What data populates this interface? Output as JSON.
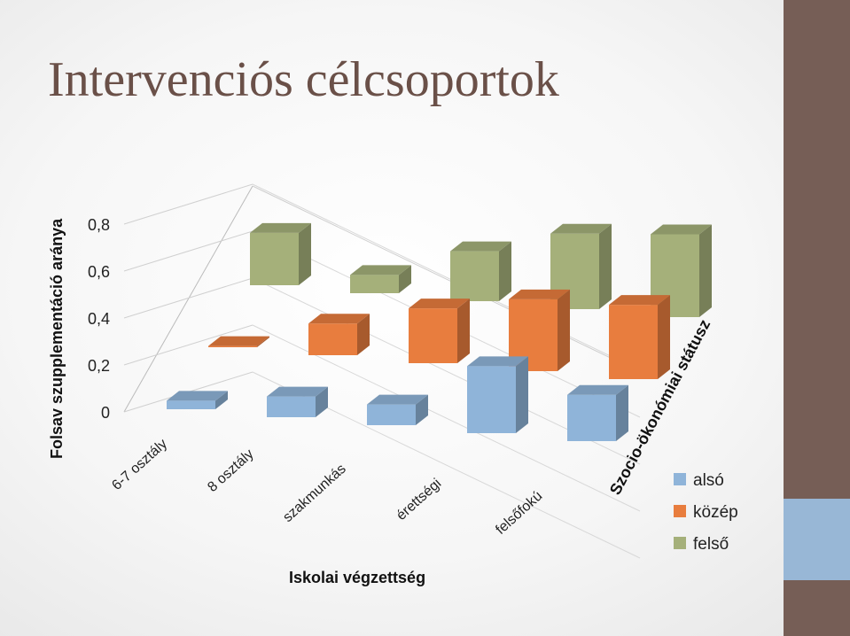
{
  "slide": {
    "title": "Intervenciós célcsoportok",
    "accent_colors": {
      "band_dark": "#765e56",
      "band_light": "#98b7d6"
    }
  },
  "chart_data": {
    "type": "bar",
    "subtype": "3d-column",
    "categories": [
      "6-7 osztály",
      "8 osztály",
      "szakmunkás",
      "érettségi",
      "felsőfokú"
    ],
    "series": [
      {
        "name": "alsó",
        "color": "#8fb4d9",
        "values": [
          0.07,
          0.17,
          0.17,
          0.55,
          0.38
        ]
      },
      {
        "name": "közép",
        "color": "#e87d3e",
        "values": [
          0.01,
          0.26,
          0.45,
          0.59,
          0.61
        ]
      },
      {
        "name": "felső",
        "color": "#a5b07a",
        "values": [
          0.43,
          0.15,
          0.41,
          0.62,
          0.68
        ]
      }
    ],
    "xlabel": "Iskolai végzettség",
    "ylabel": "Folsav szupplementáció aránya",
    "zlabel": "Szocio-ökonómiai státusz",
    "yticks": [
      "0",
      "0,2",
      "0,4",
      "0,6",
      "0,8"
    ],
    "ylim": [
      0,
      0.8
    ],
    "legend_position": "right",
    "grid": true
  }
}
